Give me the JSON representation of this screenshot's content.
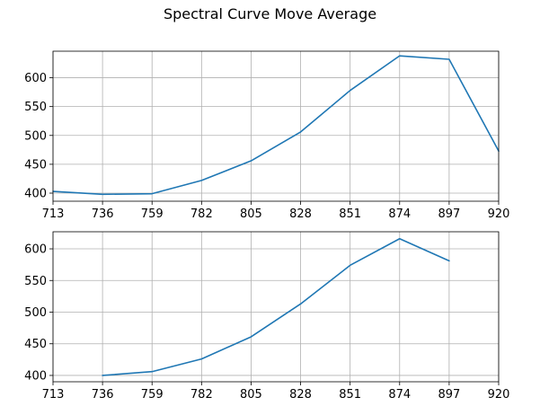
{
  "figure": {
    "title": "Spectral Curve Move Average"
  },
  "colors": {
    "line": "#1f77b4",
    "grid": "#b0b0b0",
    "axis": "#000000",
    "background": "#ffffff"
  },
  "chart_data": [
    {
      "type": "line",
      "title": "",
      "xlabel": "",
      "ylabel": "",
      "x": [
        713,
        736,
        759,
        782,
        805,
        828,
        851,
        874,
        897,
        920
      ],
      "series": [
        {
          "values": [
            403,
            398,
            399,
            422,
            456,
            506,
            578,
            638,
            632,
            473
          ]
        }
      ],
      "xlim": [
        713,
        920
      ],
      "ylim": [
        386,
        646
      ],
      "xticks": [
        "713",
        "736",
        "759",
        "782",
        "805",
        "828",
        "851",
        "874",
        "897",
        "920"
      ],
      "yticks": [
        "400",
        "450",
        "500",
        "550",
        "600"
      ],
      "grid": true
    },
    {
      "type": "line",
      "title": "",
      "xlabel": "",
      "ylabel": "",
      "x": [
        736,
        759,
        782,
        805,
        828,
        851,
        874,
        897
      ],
      "series": [
        {
          "values": [
            400,
            406,
            426,
            461,
            513,
            574,
            616,
            581
          ]
        }
      ],
      "xlim": [
        713,
        920
      ],
      "ylim": [
        390,
        627
      ],
      "xticks": [
        "713",
        "736",
        "759",
        "782",
        "805",
        "828",
        "851",
        "874",
        "897",
        "920"
      ],
      "yticks": [
        "400",
        "450",
        "500",
        "550",
        "600"
      ],
      "grid": true
    }
  ]
}
